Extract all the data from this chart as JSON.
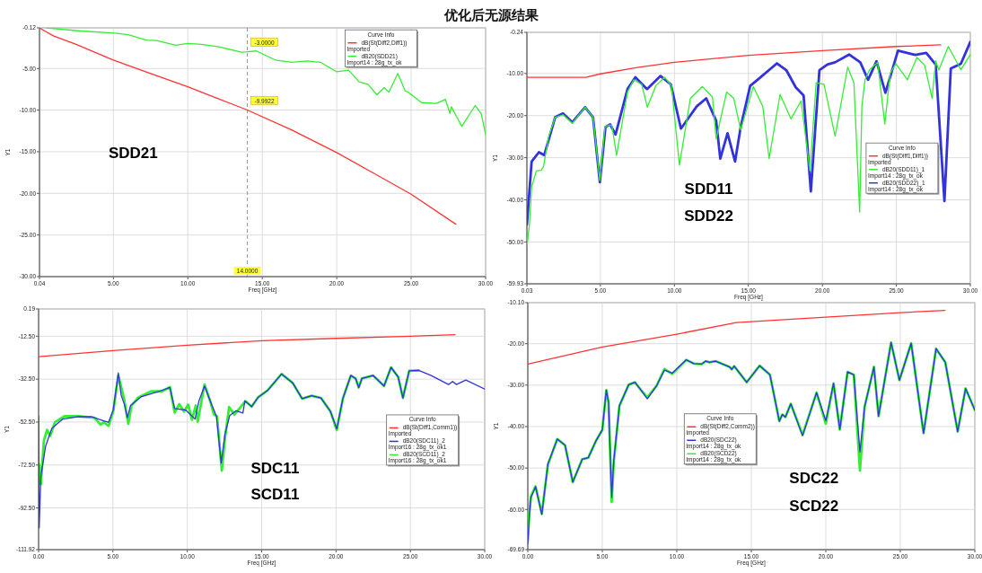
{
  "chart_data": [
    {
      "type": "line",
      "title": "优化后无源结果",
      "xlabel": "Freq [GHz]",
      "ylabel": "Y1",
      "xlim": [
        0.04,
        30
      ],
      "ylim": [
        -30,
        -0.12
      ],
      "xticks": [
        0.04,
        {
          "value": 5,
          "label": "5.00"
        },
        {
          "value": 10,
          "label": "10.00"
        },
        {
          "value": 15,
          "label": "15.00"
        },
        {
          "value": 20,
          "label": "20.00"
        },
        {
          "value": 25,
          "label": "25.00"
        },
        {
          "value": 30,
          "label": "30.00"
        }
      ],
      "yticks": [
        -0.12,
        {
          "value": -5,
          "label": "-5.00"
        },
        {
          "value": -10,
          "label": "-10.00"
        },
        {
          "value": -15,
          "label": "-15.00"
        },
        {
          "value": -20,
          "label": "-20.00"
        },
        {
          "value": -25,
          "label": "-25.00"
        },
        {
          "value": -30,
          "label": "-30.00"
        }
      ],
      "grid": true,
      "legend": "top right",
      "legend_title": "Curve Info",
      "ref_lines": [
        {
          "axis": "x",
          "value": 14,
          "label": "14.0000",
          "line_style": "dashed"
        }
      ],
      "annotations": [
        "SDD21",
        {
          "text": "-3.0000",
          "x": 14,
          "y": -3
        },
        {
          "text": "-9.9922",
          "x": 14,
          "y": -9.9922
        }
      ],
      "series": [
        {
          "name": "dB(St(Diff2,Diff1)) Imported",
          "color": "#ff3333",
          "x": [
            0.04,
            0.5,
            1,
            2.5,
            5,
            7.5,
            10,
            12,
            14,
            17,
            20,
            22.5,
            25,
            28
          ],
          "values": [
            -0.12,
            -0.6,
            -1.1,
            -2.1,
            -4.0,
            -5.6,
            -7.2,
            -8.6,
            -9.99,
            -12.4,
            -15.1,
            -17.6,
            -20.1,
            -23.7
          ]
        },
        {
          "name": "dB20(SDD21) Import14 : 28g_tx_ok",
          "color": "#33ee33",
          "x": [
            0.5,
            2.8,
            5.1,
            6.0,
            7.2,
            7.9,
            9.2,
            10.0,
            10.9,
            12.1,
            13.6,
            14.0,
            14.6,
            15.9,
            17.0,
            18.0,
            18.9,
            20.0,
            20.8,
            21.5,
            22.1,
            22.7,
            23.2,
            23.5,
            24.1,
            24.6,
            24.8,
            25.7,
            26.7,
            27.3,
            27.6,
            27.7,
            28.4,
            29.3,
            29.7,
            30
          ],
          "values": [
            -0.12,
            -0.5,
            -0.76,
            -0.95,
            -1.6,
            -1.64,
            -2.2,
            -2.0,
            -2.1,
            -2.4,
            -3.04,
            -3.0,
            -2.9,
            -4.0,
            -4.25,
            -4.1,
            -4.25,
            -5.4,
            -5.2,
            -6.6,
            -6.9,
            -8.16,
            -7.3,
            -7.85,
            -5.6,
            -7.7,
            -7.85,
            -9.1,
            -9.2,
            -8.7,
            -10.4,
            -9.6,
            -11.95,
            -9.45,
            -10.4,
            -12.9
          ]
        }
      ]
    },
    {
      "type": "line",
      "xlabel": "Freq [GHz]",
      "ylabel": "Y1",
      "xlim": [
        0.03,
        30
      ],
      "ylim": [
        -59.93,
        -0.24
      ],
      "xticks": [
        0.03,
        {
          "value": 5,
          "label": "5.00"
        },
        {
          "value": 10,
          "label": "10.00"
        },
        {
          "value": 15,
          "label": "15.00"
        },
        {
          "value": 20,
          "label": "20.00"
        },
        {
          "value": 25,
          "label": "25.00"
        },
        {
          "value": 30,
          "label": "30.00"
        }
      ],
      "yticks": [
        -0.24,
        {
          "value": -10,
          "label": "-10.00"
        },
        {
          "value": -20,
          "label": "-20.00"
        },
        {
          "value": -30,
          "label": "-30.00"
        },
        {
          "value": -40,
          "label": "-40.00"
        },
        {
          "value": -50,
          "label": "-50.00"
        },
        -59.93
      ],
      "grid": true,
      "legend": "right",
      "legend_title": "Curve Info",
      "annotations": [
        "SDD11",
        "SDD22"
      ],
      "series": [
        {
          "name": "dB(St(Diff1,Diff1)) Imported",
          "color": "#ff3333",
          "x": [
            0.03,
            4,
            5,
            7.5,
            10,
            15,
            20,
            25,
            28
          ],
          "values": [
            -10.93,
            -10.93,
            -10.1,
            -8.6,
            -7.35,
            -5.7,
            -4.6,
            -3.6,
            -3.2
          ]
        },
        {
          "name": "dB20(SDD11)_1 Import14 : 28g_tx_ok",
          "color": "#33ee33",
          "x": [
            0.03,
            0.2,
            0.35,
            0.67,
            1.0,
            1.16,
            1.5,
            1.94,
            2.47,
            3.1,
            3.96,
            4.5,
            4.96,
            5.3,
            5.56,
            5.77,
            6.09,
            6.83,
            7.26,
            7.79,
            8.17,
            8.74,
            9.34,
            9.8,
            10.34,
            11.08,
            11.89,
            12.57,
            12.82,
            13.53,
            14.01,
            14.48,
            15.33,
            15.97,
            16.4,
            17.14,
            17.88,
            18.56,
            19.16,
            19.58,
            20.11,
            20.86,
            21.71,
            22.13,
            22.52,
            22.67,
            22.88,
            23.2,
            23.73,
            24.22,
            24.58,
            24.96,
            25.75,
            26.39,
            26.92,
            27.41,
            27.66,
            27.87,
            28.51,
            29.36,
            30.0
          ],
          "values": [
            -51.1,
            -45.9,
            -36.9,
            -33.1,
            -33,
            -32,
            -25,
            -20.4,
            -19.8,
            -21.8,
            -18.0,
            -20.4,
            -35.4,
            -22.7,
            -22.3,
            -22.3,
            -29.4,
            -14.4,
            -11.5,
            -12.6,
            -18.0,
            -12.9,
            -10.9,
            -12.9,
            -31.7,
            -15.9,
            -13.1,
            -15.6,
            -25.5,
            -14.4,
            -15.9,
            -23.4,
            -13.1,
            -17.8,
            -30.2,
            -15.0,
            -20.8,
            -16.5,
            -33.1,
            -12.2,
            -12.6,
            -24.9,
            -8.5,
            -12.2,
            -42.9,
            -17.8,
            -11.5,
            -9.1,
            -7.35,
            -22.0,
            -10.0,
            -7.7,
            -11.5,
            -6.2,
            -8.1,
            -15.9,
            -7.0,
            -9.2,
            -3.6,
            -9.1,
            -5.5
          ]
        },
        {
          "name": "dB20(SDD22)_1 Import14 : 28g_tx_ok",
          "color": "#3333dd",
          "x": [
            0.03,
            0.35,
            0.84,
            1.2,
            1.94,
            2.47,
            3.1,
            3.96,
            4.5,
            4.96,
            5.34,
            5.66,
            6.02,
            6.83,
            7.36,
            8.15,
            9.06,
            9.76,
            10.44,
            11.51,
            12.15,
            12.82,
            13.1,
            13.59,
            14.1,
            14.48,
            15.12,
            15.76,
            16.93,
            17.56,
            18.2,
            18.73,
            19.22,
            19.8,
            20.33,
            20.86,
            21.81,
            22.56,
            23.09,
            23.66,
            24.26,
            25.11,
            26.28,
            27.02,
            27.66,
            28.25,
            28.68,
            29.36,
            30.0
          ],
          "values": [
            -45.9,
            -30.9,
            -28.7,
            -29.4,
            -20.4,
            -19.5,
            -21.6,
            -18.0,
            -20.4,
            -35.8,
            -22.7,
            -22.1,
            -24.5,
            -13.7,
            -10.9,
            -13.7,
            -10.6,
            -12.6,
            -23.1,
            -17.8,
            -15.9,
            -21.2,
            -30.2,
            -24.2,
            -30.9,
            -22.7,
            -12.96,
            -11.1,
            -7.6,
            -9.2,
            -13.3,
            -15.2,
            -38.0,
            -9.2,
            -7.9,
            -7.35,
            -5.5,
            -7.35,
            -11.5,
            -7.1,
            -14.6,
            -4.6,
            -5.6,
            -5.1,
            -7.9,
            -40.3,
            -8.8,
            -7.7,
            -2.5
          ]
        }
      ]
    },
    {
      "type": "line",
      "xlabel": "Freq [GHz]",
      "ylabel": "Y1",
      "xlim": [
        0,
        30
      ],
      "ylim": [
        -111.92,
        0.19
      ],
      "xticks": [
        {
          "value": 0,
          "label": "0.00"
        },
        {
          "value": 5,
          "label": "5.00"
        },
        {
          "value": 10,
          "label": "10.00"
        },
        {
          "value": 15,
          "label": "15.00"
        },
        {
          "value": 20,
          "label": "20.00"
        },
        {
          "value": 25,
          "label": "25.00"
        },
        {
          "value": 30,
          "label": "30.00"
        }
      ],
      "yticks": [
        0.19,
        {
          "value": -12.5,
          "label": "-12.50"
        },
        {
          "value": -32.5,
          "label": "-32.50"
        },
        {
          "value": -52.5,
          "label": "-52.50"
        },
        {
          "value": -72.5,
          "label": "-72.50"
        },
        {
          "value": -92.5,
          "label": "-92.50"
        },
        -111.92
      ],
      "grid": true,
      "legend": "right",
      "legend_title": "Curve Info",
      "annotations": [
        "SDC11",
        "SCD11"
      ],
      "series": [
        {
          "name": "dB(St(Diff1,Comm1)) Imported",
          "color": "#ff3333",
          "x": [
            0,
            5,
            10,
            15,
            20,
            25,
            28
          ],
          "values": [
            -22.0,
            -19.2,
            -16.7,
            -14.6,
            -13.5,
            -12.5,
            -11.8
          ]
        },
        {
          "name": "dB20(SDC11)_2 Import16 : 28g_tx_ok1",
          "color": "#3333dd",
          "x": [
            0,
            0.04,
            0.15,
            0.47,
            0.89,
            1.63,
            2.69,
            3.54,
            4.38,
            4.7,
            5.02,
            5.36,
            5.55,
            5.76,
            5.97,
            6.18,
            6.92,
            7.98,
            8.83,
            9.15,
            9.89,
            10.52,
            10.78,
            11.16,
            11.54,
            11.96,
            12.28,
            12.53,
            12.85,
            13.28,
            13.74,
            13.87,
            14.33,
            14.76,
            15.39,
            16.34,
            17.09,
            17.72,
            18.36,
            18.99,
            19.63,
            20.05,
            20.47,
            21.0,
            21.32,
            21.53,
            21.74,
            22.49,
            23.23,
            23.7,
            24.18,
            24.5,
            24.92,
            25.56,
            26.4,
            27.57,
            27.84,
            28.1,
            28.73,
            30.0
          ],
          "values": [
            -49.8,
            -101.8,
            -77.9,
            -63.8,
            -55.4,
            -51.1,
            -50.0,
            -50.0,
            -51.9,
            -52.6,
            -46.9,
            -29.6,
            -39.9,
            -44.1,
            -50.5,
            -44.8,
            -40.6,
            -38.5,
            -36.4,
            -46.2,
            -46.9,
            -51.1,
            -42.7,
            -35.7,
            -42.7,
            -49.8,
            -71.6,
            -58.2,
            -49.5,
            -47.2,
            -48.3,
            -42.7,
            -45.3,
            -41.0,
            -37.8,
            -30.1,
            -34.3,
            -41.6,
            -40.2,
            -41.3,
            -47.6,
            -55.7,
            -41.3,
            -30.8,
            -32.2,
            -36.4,
            -32.2,
            -30.8,
            -35.7,
            -27.0,
            -31.5,
            -41.3,
            -28.6,
            -28.4,
            -30.8,
            -35.0,
            -33.6,
            -35.0,
            -32.9,
            -37.1
          ]
        },
        {
          "name": "dB20(SCD11)_2 Import16 : 28g_tx_ok1",
          "color": "#33ee33",
          "x": [
            0.04,
            0.15,
            0.36,
            0.57,
            0.78,
            1.1,
            1.74,
            2.69,
            3.75,
            4.17,
            4.38,
            4.7,
            5.02,
            5.36,
            5.76,
            6.03,
            6.25,
            6.71,
            7.56,
            8.3,
            8.83,
            9.15,
            9.46,
            9.78,
            10.06,
            10.31,
            10.57,
            10.7,
            11.16,
            11.54,
            11.79,
            12.0,
            12.32,
            12.53,
            12.81,
            13.17,
            13.59,
            13.91,
            14.33,
            14.76,
            15.39,
            16.34,
            17.09,
            17.72,
            18.36,
            18.99,
            19.63,
            20.05,
            20.47,
            21.0,
            21.32,
            21.53,
            21.74,
            22.49,
            23.23,
            23.7,
            24.18,
            24.5,
            24.92,
            25.56
          ],
          "values": [
            -72.3,
            -81.4,
            -61.0,
            -56.1,
            -58.9,
            -52.6,
            -49.8,
            -49.8,
            -50.5,
            -53.7,
            -52.6,
            -54.3,
            -47.6,
            -30.8,
            -42.0,
            -53.3,
            -44.8,
            -41.0,
            -38.2,
            -38.2,
            -36.2,
            -48.1,
            -44.1,
            -47.6,
            -44.4,
            -51.4,
            -44.8,
            -52.3,
            -35.0,
            -42.7,
            -49.0,
            -49.8,
            -75.1,
            -60.3,
            -45.5,
            -49.0,
            -45.5,
            -42.7,
            -45.3,
            -41.0,
            -37.8,
            -30.1,
            -34.3,
            -41.6,
            -40.2,
            -41.3,
            -47.6,
            -56.2,
            -41.3,
            -30.8,
            -32.2,
            -36.4,
            -32.2,
            -30.8,
            -35.7,
            -27.0,
            -31.5,
            -41.3,
            -28.6,
            -28.4
          ]
        }
      ]
    },
    {
      "type": "line",
      "xlabel": "Freq [GHz]",
      "ylabel": "Y1",
      "xlim": [
        0,
        30
      ],
      "ylim": [
        -69.69,
        -10.1
      ],
      "xticks": [
        {
          "value": 0,
          "label": "0.00"
        },
        {
          "value": 5,
          "label": "5.00"
        },
        {
          "value": 10,
          "label": "10.00"
        },
        {
          "value": 15,
          "label": "15.00"
        },
        {
          "value": 20,
          "label": "20.00"
        },
        {
          "value": 25,
          "label": "25.00"
        },
        {
          "value": 30,
          "label": "30.00"
        }
      ],
      "yticks": [
        {
          "value": -10.1,
          "label": "-10.10"
        },
        {
          "value": -20,
          "label": "-20.00"
        },
        {
          "value": -30,
          "label": "-30.00"
        },
        {
          "value": -40,
          "label": "-40.00"
        },
        {
          "value": -50,
          "label": "-50.00"
        },
        {
          "value": -60,
          "label": "-60.00"
        },
        -69.69
      ],
      "grid": true,
      "legend": "center",
      "legend_title": "Curve Info",
      "annotations": [
        "SDC22",
        "SCD22"
      ],
      "series": [
        {
          "name": "dB(St(Diff2,Comm2)) Imported",
          "color": "#ff3333",
          "x": [
            0,
            5,
            10,
            14,
            20,
            25,
            28
          ],
          "values": [
            -24.9,
            -20.8,
            -17.7,
            -14.9,
            -13.6,
            -12.5,
            -11.95
          ]
        },
        {
          "name": "dB20(SDC22) Import14 : 28g_tx_ok",
          "color": "#3333dd",
          "x": [
            0,
            0.1,
            0.21,
            0.52,
            0.94,
            1.35,
            1.98,
            2.5,
            3.02,
            3.65,
            4.06,
            4.58,
            5.0,
            5.27,
            5.42,
            5.63,
            5.77,
            6.15,
            6.77,
            7.19,
            7.6,
            8.02,
            8.65,
            9.17,
            9.69,
            10.63,
            11.15,
            11.67,
            11.94,
            12.19,
            12.6,
            13.54,
            13.69,
            13.85,
            14.69,
            15.56,
            16.25,
            16.88,
            17.08,
            17.29,
            17.65,
            18.44,
            19.38,
            20.0,
            20.52,
            20.94,
            21.46,
            21.88,
            22.29,
            22.6,
            23.23,
            23.54,
            24.38,
            24.94,
            25.73,
            26.56,
            27.4,
            28.02,
            28.85,
            29.38,
            30.0
          ],
          "values": [
            -68.2,
            -61.5,
            -57.1,
            -54.5,
            -61.2,
            -49.0,
            -43.0,
            -44.5,
            -53.4,
            -47.9,
            -47.5,
            -43.4,
            -40.8,
            -31.2,
            -34.2,
            -57.1,
            -48.2,
            -34.9,
            -29.9,
            -29.3,
            -31.2,
            -33.3,
            -30.1,
            -26.4,
            -27.1,
            -23.9,
            -24.8,
            -24.9,
            -24.2,
            -24.5,
            -24.2,
            -25.6,
            -26.2,
            -25.4,
            -29.3,
            -25.3,
            -27.5,
            -38.7,
            -37.1,
            -37.7,
            -34.5,
            -42.2,
            -31.8,
            -38.6,
            -29.6,
            -40.7,
            -26.8,
            -27.5,
            -46.1,
            -35.3,
            -25.6,
            -37.5,
            -19.7,
            -28.8,
            -19.9,
            -41.6,
            -21.2,
            -24.5,
            -41.2,
            -30.8,
            -36.0
          ]
        },
        {
          "name": "dB20(SCD22) Import14 : 28g_tx_ok",
          "color": "#33ee33",
          "x": [
            0,
            0.1,
            0.21,
            0.52,
            0.94,
            1.35,
            1.98,
            2.5,
            3.02,
            3.65,
            4.06,
            4.58,
            5.0,
            5.27,
            5.42,
            5.63,
            5.77,
            6.15,
            6.77,
            7.19,
            7.6,
            8.02,
            8.65,
            9.17,
            9.69,
            10.63,
            11.15,
            11.67,
            11.94,
            12.19,
            12.6,
            13.54,
            13.69,
            13.85,
            14.69,
            15.56,
            16.25,
            16.88,
            17.08,
            17.29,
            17.65,
            18.44,
            19.38,
            20.0,
            20.52,
            20.94,
            21.46,
            21.88,
            22.29,
            22.6,
            23.23,
            23.54,
            24.38,
            24.94,
            25.73,
            26.56,
            27.4,
            28.02,
            28.85,
            29.38,
            30.0
          ],
          "values": [
            -67.5,
            -61.0,
            -56.8,
            -54.4,
            -61.0,
            -49.2,
            -43.0,
            -44.5,
            -53.4,
            -47.9,
            -47.5,
            -43.4,
            -40.8,
            -31.2,
            -34.2,
            -58.2,
            -48.5,
            -35.0,
            -29.9,
            -29.3,
            -31.2,
            -33.0,
            -30.1,
            -26.1,
            -27.3,
            -23.9,
            -24.8,
            -24.9,
            -24.2,
            -24.5,
            -24.2,
            -25.6,
            -26.2,
            -25.4,
            -29.3,
            -25.3,
            -27.5,
            -38.7,
            -37.1,
            -37.7,
            -34.5,
            -42.0,
            -31.8,
            -39.3,
            -29.6,
            -40.7,
            -26.8,
            -27.5,
            -50.6,
            -35.3,
            -25.6,
            -37.5,
            -19.7,
            -28.8,
            -19.9,
            -41.6,
            -21.2,
            -24.5,
            -41.2,
            -30.8,
            -36.0
          ]
        }
      ]
    }
  ]
}
